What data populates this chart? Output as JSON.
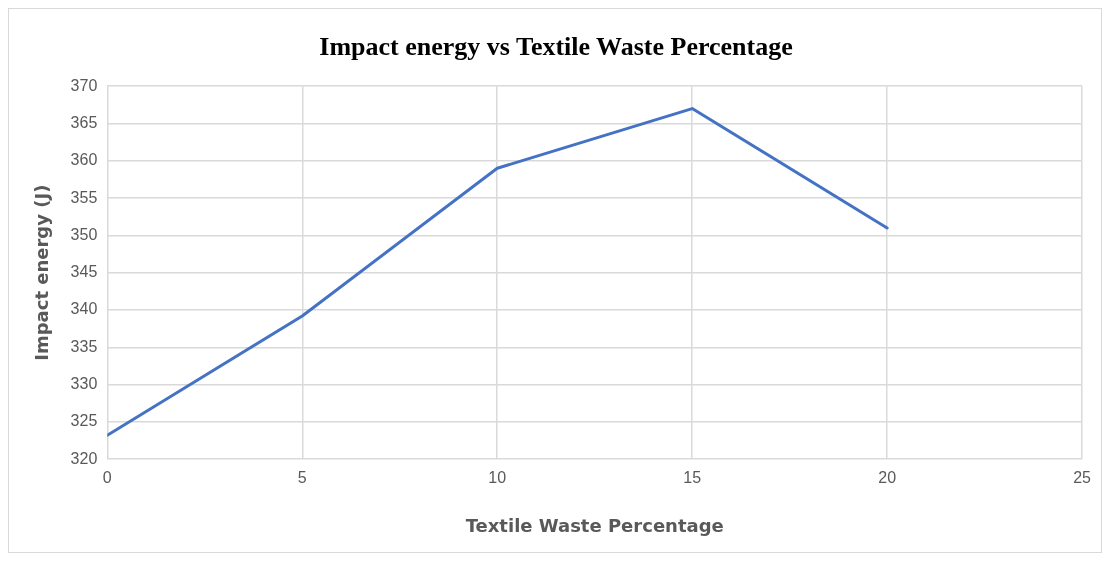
{
  "chart_data": {
    "type": "line",
    "title": "Impact energy vs Textile Waste Percentage",
    "xlabel": "Textile Waste Percentage",
    "ylabel": "Impact energy (J)",
    "x": [
      0,
      5,
      10,
      15,
      20
    ],
    "series": [
      {
        "color": "#4472c4",
        "values": [
          323.2,
          339.2,
          359,
          367,
          351
        ]
      }
    ],
    "xlim": [
      0,
      25
    ],
    "xticks": [
      0,
      5,
      10,
      15,
      20,
      25
    ],
    "ylim": [
      320,
      370
    ],
    "yticks": [
      320,
      325,
      330,
      335,
      340,
      345,
      350,
      355,
      360,
      365,
      370
    ],
    "grid": true,
    "legend": false,
    "marker": "none",
    "line_style": "solid"
  }
}
